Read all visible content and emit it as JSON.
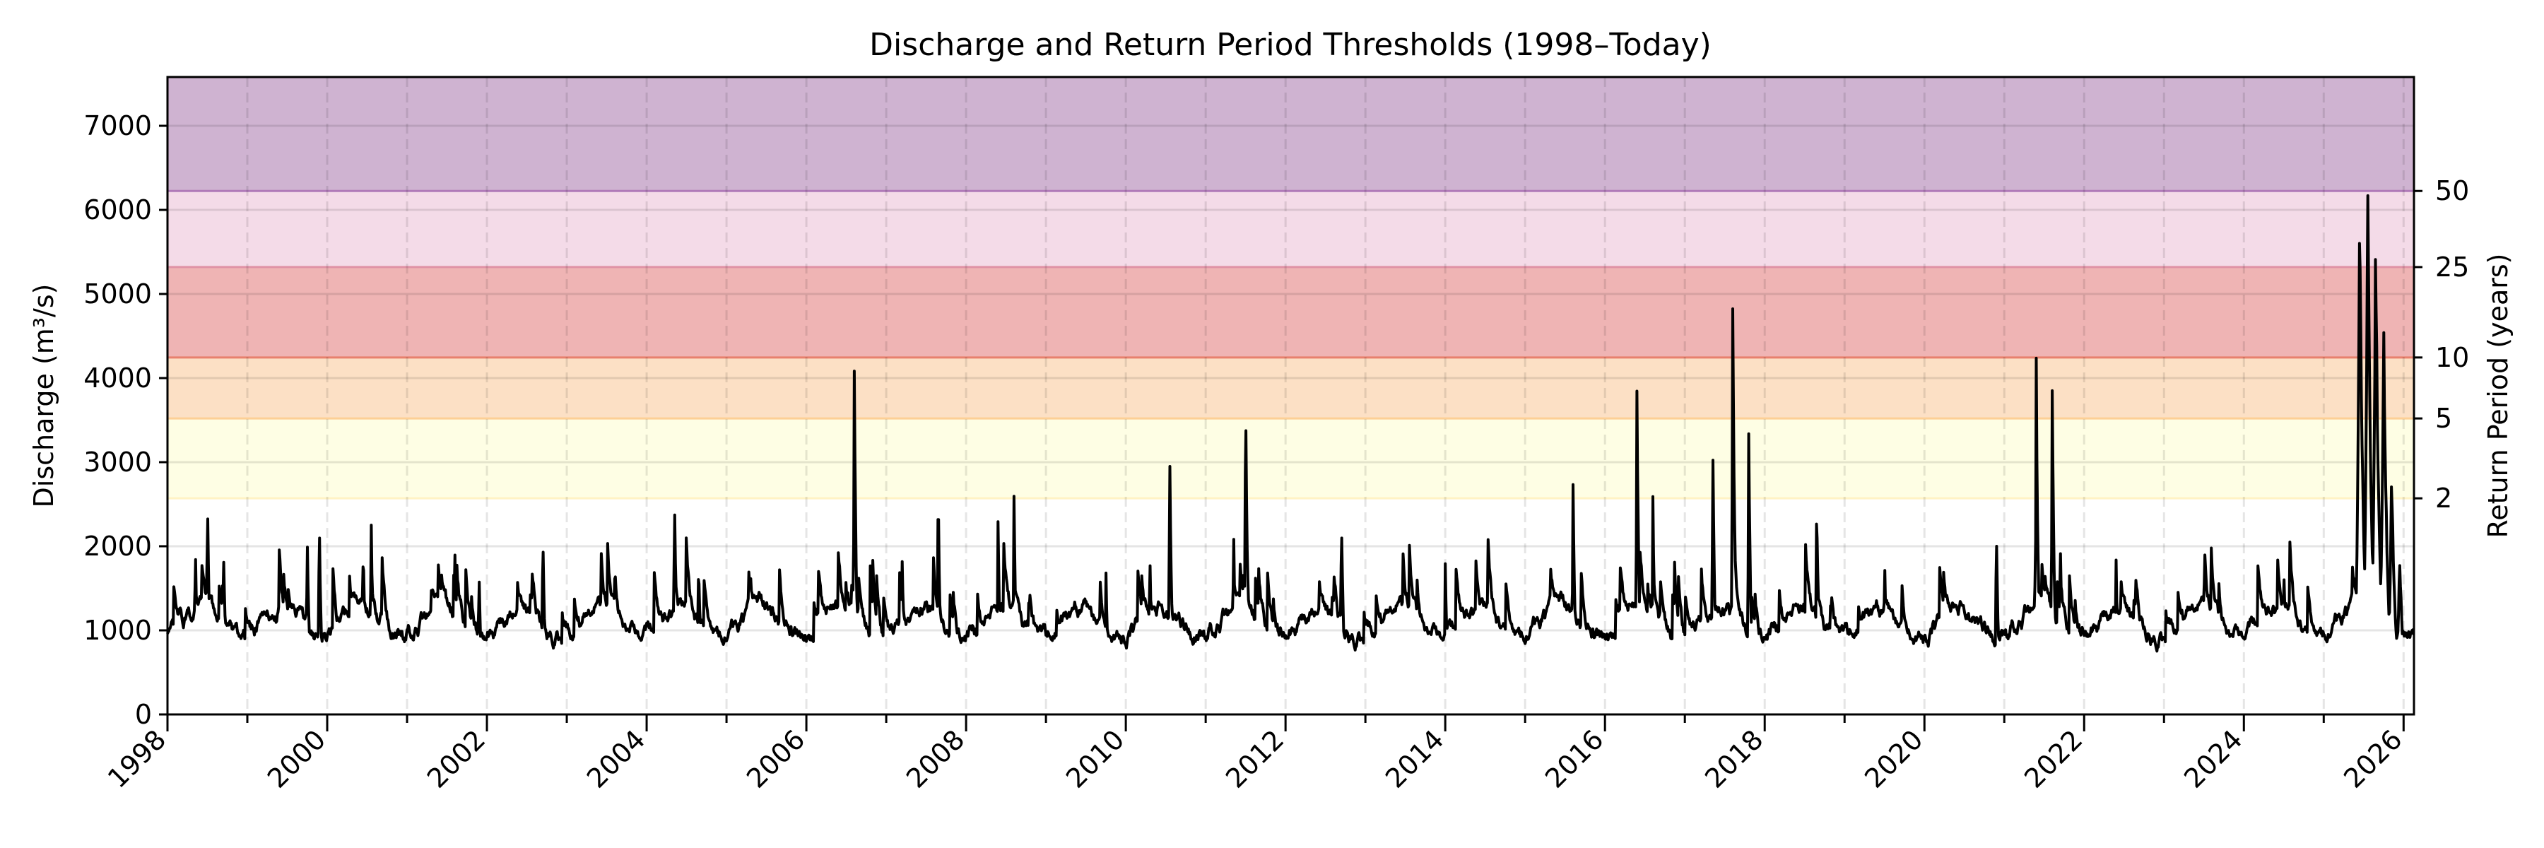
{
  "chart_data": {
    "type": "line",
    "title": "Discharge and Return Period Thresholds (1998–Today)",
    "xlabel": "",
    "ylabel": "Discharge (m³/s)",
    "ylabel_right": "Return Period (years)",
    "xlim": [
      1998.0,
      2026.13
    ],
    "ylim": [
      0,
      7580
    ],
    "grid": true,
    "y_ticks": [
      0,
      1000,
      2000,
      3000,
      4000,
      5000,
      6000,
      7000
    ],
    "y_tick_labels": [
      "0",
      "1000",
      "2000",
      "3000",
      "4000",
      "5000",
      "6000",
      "7000"
    ],
    "x_ticks": [
      1998,
      2000,
      2002,
      2004,
      2006,
      2008,
      2010,
      2012,
      2014,
      2016,
      2018,
      2020,
      2022,
      2024,
      2026
    ],
    "x_tick_labels": [
      "1998",
      "2000",
      "2002",
      "2004",
      "2006",
      "2008",
      "2010",
      "2012",
      "2014",
      "2016",
      "2018",
      "2020",
      "2022",
      "2024",
      "2026"
    ],
    "thresholds": [
      {
        "label": "2",
        "value": 2570,
        "fill": "#fefee4",
        "line": "#fff3c4"
      },
      {
        "label": "5",
        "value": 3520,
        "fill": "#fce0c5",
        "line": "#fdcf95"
      },
      {
        "label": "10",
        "value": 4245,
        "fill": "#efb4b4",
        "line": "#e8806e"
      },
      {
        "label": "25",
        "value": 5320,
        "fill": "#f4dbe8",
        "line": "#e092a6"
      },
      {
        "label": "50",
        "value": 6225,
        "fill": "#cfb3d1",
        "line": "#b07ab8"
      }
    ],
    "series": [
      {
        "name": "Discharge",
        "color": "#000000",
        "baseline_mean": 1100,
        "peaks": [
          [
            1998.35,
            2000
          ],
          [
            1998.5,
            2850
          ],
          [
            1998.7,
            2200
          ],
          [
            1999.75,
            2300
          ],
          [
            1999.9,
            2500
          ],
          [
            2000.45,
            2150
          ],
          [
            2000.55,
            2500
          ],
          [
            2001.6,
            1950
          ],
          [
            2001.9,
            1850
          ],
          [
            2002.7,
            2300
          ],
          [
            2003.6,
            1700
          ],
          [
            2004.35,
            2700
          ],
          [
            2004.65,
            2000
          ],
          [
            2005.3,
            1850
          ],
          [
            2006.6,
            4200
          ],
          [
            2006.8,
            1800
          ],
          [
            2007.2,
            1950
          ],
          [
            2007.65,
            2850
          ],
          [
            2008.4,
            2400
          ],
          [
            2008.6,
            2700
          ],
          [
            2009.75,
            1850
          ],
          [
            2010.3,
            2100
          ],
          [
            2010.55,
            3350
          ],
          [
            2011.35,
            2300
          ],
          [
            2011.5,
            4150
          ],
          [
            2012.7,
            2600
          ],
          [
            2014.0,
            1800
          ],
          [
            2015.6,
            2900
          ],
          [
            2016.4,
            4000
          ],
          [
            2016.6,
            2650
          ],
          [
            2017.35,
            3250
          ],
          [
            2017.6,
            5100
          ],
          [
            2017.8,
            3400
          ],
          [
            2018.65,
            2700
          ],
          [
            2019.5,
            2000
          ],
          [
            2020.9,
            2400
          ],
          [
            2021.4,
            4250
          ],
          [
            2021.6,
            3950
          ],
          [
            2021.7,
            2300
          ],
          [
            2022.4,
            1900
          ],
          [
            2023.5,
            1900
          ],
          [
            2024.5,
            1900
          ],
          [
            2025.45,
            6300
          ],
          [
            2025.55,
            6550
          ],
          [
            2025.65,
            5800
          ],
          [
            2025.75,
            4800
          ],
          [
            2025.85,
            3000
          ],
          [
            2025.95,
            2000
          ]
        ]
      }
    ]
  }
}
